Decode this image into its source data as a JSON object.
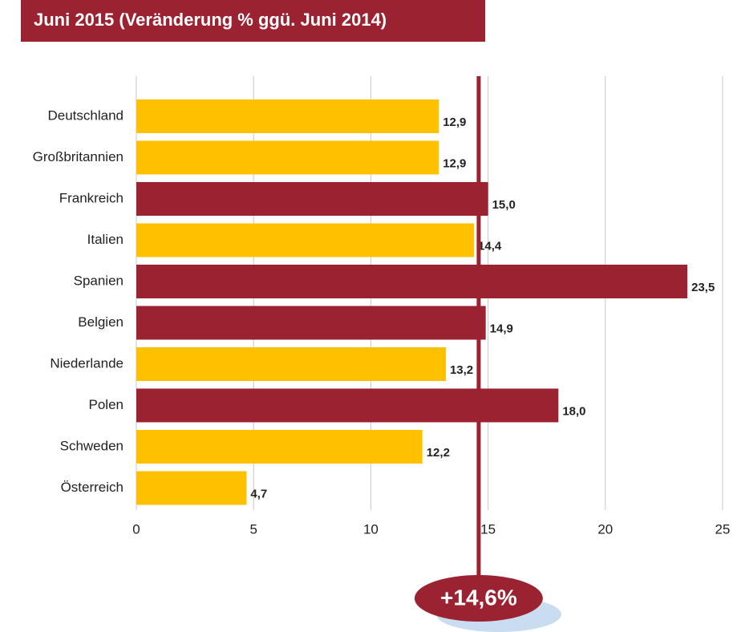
{
  "chart_data": {
    "type": "barh",
    "title": "Juni 2015 (Veränderung % ggü. Juni 2014)",
    "categories": [
      "Deutschland",
      "Großbritannien",
      "Frankreich",
      "Italien",
      "Spanien",
      "Belgien",
      "Niederlande",
      "Polen",
      "Schweden",
      "Österreich"
    ],
    "values": [
      12.9,
      12.9,
      15.0,
      14.4,
      23.5,
      14.9,
      13.2,
      18.0,
      12.2,
      4.7
    ],
    "value_labels": [
      "12,9",
      "12,9",
      "15,0",
      "14,4",
      "23,5",
      "14,9",
      "13,2",
      "18,0",
      "12,2",
      "4,7"
    ],
    "colors": [
      "#ffc000",
      "#ffc000",
      "#9b2230",
      "#ffc000",
      "#9b2230",
      "#9b2230",
      "#ffc000",
      "#9b2230",
      "#ffc000",
      "#ffc000"
    ],
    "xlim": [
      0,
      25
    ],
    "xticks": [
      0,
      5,
      10,
      15,
      20,
      25
    ],
    "grid": true,
    "reference_line": {
      "value": 14.6,
      "label": "+14,6%",
      "color": "#9b2230"
    }
  }
}
